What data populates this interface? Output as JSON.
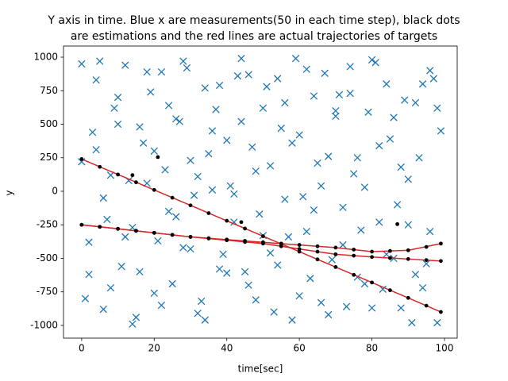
{
  "chart_data": {
    "type": "scatter",
    "title": [
      "Y axis in time. Blue x are measurements(50 in each time step), black dots",
      "are estimations and the red lines are actual trajectories of targets"
    ],
    "xlabel": "time[sec]",
    "ylabel": "y",
    "xlim": [
      -5,
      103.5
    ],
    "ylim": [
      -1095,
      1083
    ],
    "xticks": [
      0,
      20,
      40,
      60,
      80,
      100
    ],
    "yticks": [
      -1000,
      -750,
      -500,
      -250,
      0,
      250,
      500,
      750,
      1000
    ],
    "grid": false,
    "series": [
      {
        "style": "marker",
        "marker": "x",
        "color": "#1f77b4",
        "x": [
          0,
          2,
          4,
          6,
          8,
          10,
          12,
          14,
          16,
          18,
          20,
          22,
          24,
          26,
          28,
          30,
          32,
          34,
          36,
          38,
          40,
          42,
          44,
          46,
          48,
          50,
          52,
          54,
          56,
          58,
          60,
          62,
          64,
          66,
          68,
          70,
          72,
          74,
          76,
          78,
          80,
          82,
          84,
          86,
          88,
          90,
          92,
          94,
          96,
          98,
          1,
          3,
          5,
          7,
          9,
          11,
          13,
          15,
          17,
          19,
          21,
          23,
          25,
          27,
          29,
          31,
          33,
          35,
          37,
          39,
          41,
          43,
          45,
          47,
          49,
          51,
          53,
          55,
          57,
          59,
          61,
          63,
          65,
          67,
          69,
          71,
          73,
          75,
          77,
          79,
          81,
          83,
          85,
          87,
          89,
          91,
          93,
          95,
          97,
          99,
          0,
          2,
          4,
          6,
          8,
          10,
          12,
          14,
          16,
          18,
          20,
          22,
          24,
          26,
          28,
          30,
          32,
          34,
          36,
          38,
          40,
          42,
          44,
          46,
          48,
          50,
          52,
          54,
          56,
          58,
          60,
          62,
          64,
          66,
          68,
          70,
          72,
          74,
          76,
          78,
          80,
          82,
          84,
          86,
          88,
          90,
          92,
          94,
          96,
          98
        ],
        "y": [
          950,
          -620,
          310,
          -880,
          120,
          700,
          -340,
          -990,
          480,
          60,
          -760,
          890,
          -150,
          540,
          -420,
          230,
          -910,
          770,
          10,
          -580,
          380,
          -230,
          990,
          -700,
          150,
          620,
          -460,
          840,
          -60,
          -960,
          420,
          -300,
          710,
          -830,
          260,
          560,
          -120,
          930,
          -640,
          30,
          -870,
          340,
          800,
          -500,
          180,
          -250,
          660,
          -720,
          900,
          -980,
          -800,
          440,
          970,
          -210,
          620,
          -560,
          80,
          -940,
          360,
          740,
          -370,
          160,
          -690,
          520,
          920,
          -30,
          -820,
          280,
          610,
          -470,
          40,
          860,
          -600,
          330,
          -170,
          780,
          -900,
          470,
          -340,
          990,
          -40,
          -650,
          210,
          880,
          -510,
          720,
          -860,
          130,
          -290,
          590,
          960,
          -730,
          390,
          -100,
          680,
          -980,
          250,
          -540,
          840,
          450,
          220,
          -380,
          830,
          -50,
          -720,
          500,
          940,
          -270,
          -600,
          890,
          300,
          -850,
          640,
          -190,
          970,
          -430,
          110,
          -960,
          450,
          790,
          -610,
          -20,
          520,
          870,
          -810,
          -330,
          190,
          -550,
          660,
          360,
          -780,
          910,
          -140,
          40,
          -920,
          600,
          -400,
          730,
          250,
          -690,
          980,
          -230,
          -470,
          550,
          -870,
          90,
          -620,
          800,
          -300,
          620
        ]
      },
      {
        "style": "line",
        "color": "#d62728",
        "x": [
          0,
          10,
          20,
          30,
          40,
          50,
          60,
          70,
          80,
          90,
          99
        ],
        "y": [
          240,
          125,
          10,
          -105,
          -220,
          -335,
          -450,
          -565,
          -680,
          -795,
          -900
        ]
      },
      {
        "style": "line",
        "color": "#d62728",
        "x": [
          0,
          10,
          20,
          30,
          40,
          50,
          60,
          70,
          80,
          90,
          99
        ],
        "y": [
          -250,
          -280,
          -310,
          -340,
          -360,
          -380,
          -400,
          -420,
          -450,
          -440,
          -390
        ]
      },
      {
        "style": "line",
        "color": "#d62728",
        "x": [
          0,
          10,
          20,
          30,
          40,
          50,
          60,
          70,
          80,
          90,
          99
        ],
        "y": [
          -250,
          -280,
          -310,
          -340,
          -365,
          -390,
          -430,
          -470,
          -490,
          -505,
          -520
        ]
      },
      {
        "style": "marker",
        "marker": "o",
        "color": "#000000",
        "x": [
          0,
          5,
          10,
          15,
          20,
          25,
          30,
          35,
          40,
          45,
          50,
          55,
          60,
          65,
          70,
          75,
          80,
          85,
          90,
          95,
          99,
          14,
          21
        ],
        "y": [
          240,
          182,
          125,
          67,
          10,
          -48,
          -105,
          -163,
          -220,
          -278,
          -335,
          -393,
          -450,
          -508,
          -565,
          -623,
          -680,
          -738,
          -795,
          -853,
          -900,
          120,
          255
        ]
      },
      {
        "style": "marker",
        "marker": "o",
        "color": "#000000",
        "x": [
          0,
          5,
          10,
          15,
          20,
          25,
          30,
          35,
          40,
          45,
          50,
          55,
          60,
          65,
          70,
          75,
          80,
          85,
          90,
          95,
          99,
          44,
          87
        ],
        "y": [
          -250,
          -265,
          -280,
          -295,
          -310,
          -325,
          -340,
          -350,
          -360,
          -370,
          -380,
          -390,
          -400,
          -410,
          -420,
          -435,
          -450,
          -445,
          -440,
          -415,
          -390,
          -230,
          -245
        ]
      },
      {
        "style": "marker",
        "marker": "o",
        "color": "#000000",
        "x": [
          0,
          5,
          10,
          15,
          20,
          25,
          30,
          35,
          40,
          45,
          50,
          55,
          60,
          65,
          70,
          75,
          80,
          85,
          90,
          95,
          99
        ],
        "y": [
          -250,
          -265,
          -280,
          -295,
          -310,
          -325,
          -340,
          -352,
          -365,
          -378,
          -390,
          -410,
          -430,
          -450,
          -470,
          -480,
          -490,
          -498,
          -505,
          -513,
          -520
        ]
      }
    ]
  }
}
